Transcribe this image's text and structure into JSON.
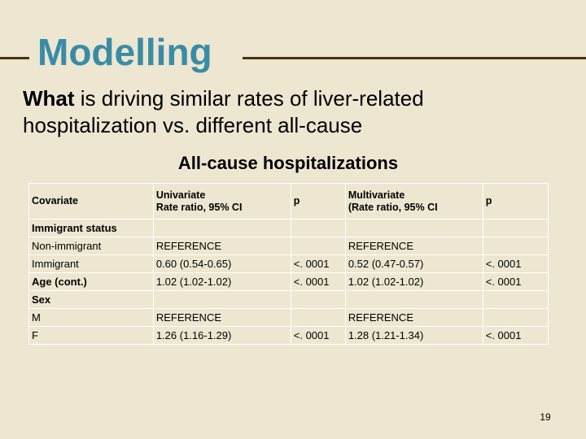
{
  "slide": {
    "title": "Modelling",
    "question_bold": "What",
    "question_rest": " is driving similar rates of liver-related hospitalization vs. different all-cause",
    "subtitle": "All-cause hospitalizations",
    "page_number": "19"
  },
  "table": {
    "header": {
      "covariate": "Covariate",
      "univariate_1": "Univariate",
      "univariate_2": "Rate ratio, 95% CI",
      "p1": "p",
      "multivariate_1": "Multivariate",
      "multivariate_2": "(Rate ratio, 95% CI",
      "p2": "p"
    },
    "rows": [
      {
        "c1": "Immigrant status",
        "c2": "",
        "c3": "",
        "c4": "",
        "c5": ""
      },
      {
        "c1": "Non-immigrant",
        "c2": "REFERENCE",
        "c3": "",
        "c4": "REFERENCE",
        "c5": ""
      },
      {
        "c1": "Immigrant",
        "c2": "0.60 (0.54-0.65)",
        "c3": "<. 0001",
        "c4": "0.52 (0.47-0.57)",
        "c5": "<. 0001"
      },
      {
        "c1": "Age (cont.)",
        "c2": "1.02 (1.02-1.02)",
        "c3": "<. 0001",
        "c4": "1.02 (1.02-1.02)",
        "c5": "<. 0001"
      },
      {
        "c1": "Sex",
        "c2": "",
        "c3": "",
        "c4": "",
        "c5": ""
      },
      {
        "c1": "M",
        "c2": "REFERENCE",
        "c3": "",
        "c4": "REFERENCE",
        "c5": ""
      },
      {
        "c1": "F",
        "c2": "1.26 (1.16-1.29)",
        "c3": "<. 0001",
        "c4": "1.28 (1.21-1.34)",
        "c5": "<. 0001"
      }
    ]
  },
  "colors": {
    "background": "#EDE6D1",
    "title": "#3A8CA6",
    "rule": "#4B2E14"
  }
}
